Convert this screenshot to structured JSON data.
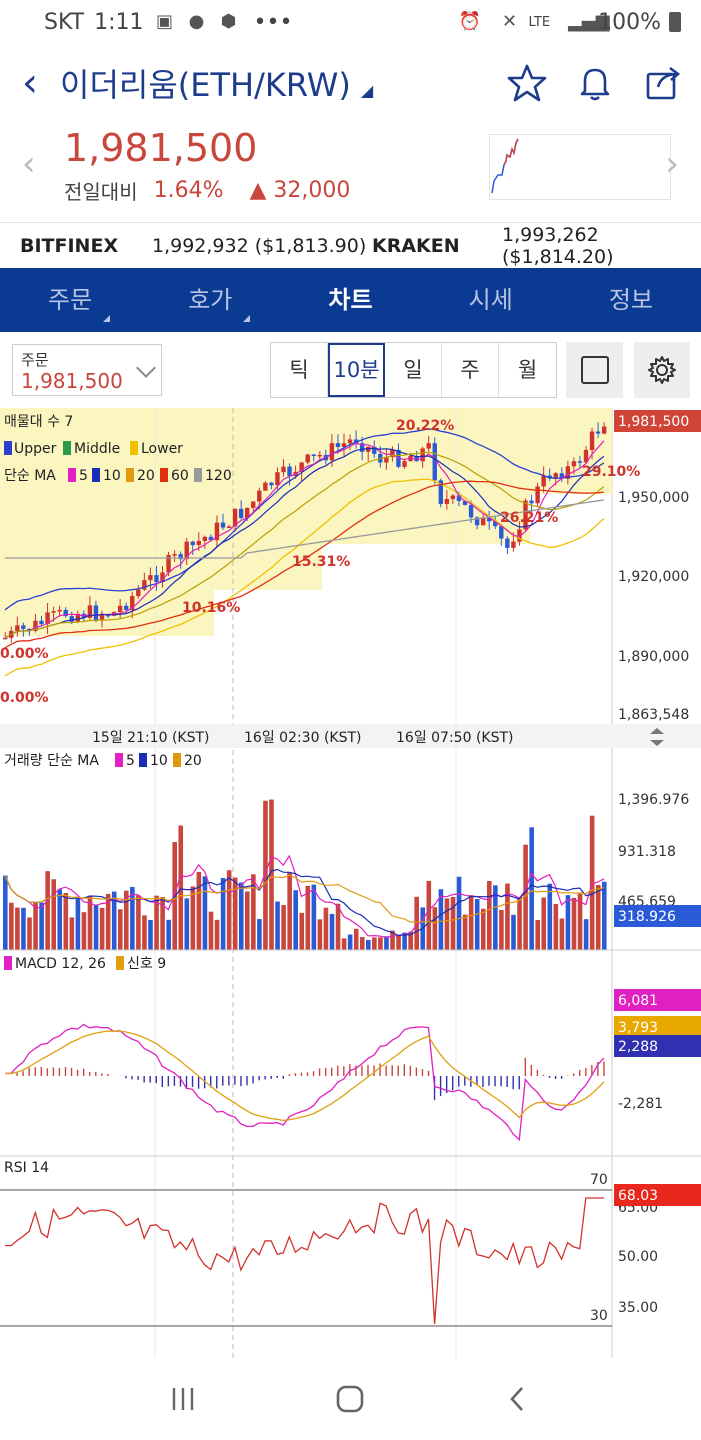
{
  "status": {
    "carrier": "SKT",
    "time": "1:11",
    "more": "•••",
    "network": "LTE",
    "battery": "100%"
  },
  "header": {
    "title": "이더리움(ETH/KRW)"
  },
  "price": {
    "current": "1,981,500",
    "label": "전일대비",
    "percent": "1.64%",
    "change": "32,000"
  },
  "exchanges": [
    {
      "name": "BITFINEX",
      "value": "1,992,932 ($1,813.90)"
    },
    {
      "name": "KRAKEN",
      "value": "1,993,262 ($1,814.20)"
    }
  ],
  "tabs": [
    {
      "label": "주문"
    },
    {
      "label": "호가"
    },
    {
      "label": "차트"
    },
    {
      "label": "시세"
    },
    {
      "label": "정보"
    }
  ],
  "order": {
    "label": "주문",
    "value": "1,981,500"
  },
  "periods": [
    "틱",
    "10분",
    "일",
    "주",
    "월"
  ],
  "chart_data": {
    "type": "candlestick",
    "price_axis": [
      "1,950,000",
      "1,920,000",
      "1,890,000",
      "1,863,548"
    ],
    "current_price": "1,981,500",
    "time_axis": [
      "15일 21:10 (KST)",
      "16일 02:30 (KST)",
      "16일 07:50 (KST)"
    ],
    "legend_vp": "매물대 수 7",
    "bollinger": [
      "Upper",
      "Middle",
      "Lower"
    ],
    "ma_title": "단순 MA",
    "ma_periods": [
      "5",
      "10",
      "20",
      "60",
      "120"
    ],
    "annotations": [
      "20.22%",
      "29.10%",
      "26.21%",
      "15.31%",
      "10.16%",
      "0.00%",
      "0.00%"
    ],
    "volume": {
      "title": "거래량 단순 MA",
      "periods": [
        "5",
        "10",
        "20"
      ],
      "ticks": [
        "1,396.976",
        "931.318",
        "465.659"
      ],
      "current": "318.926"
    },
    "macd": {
      "title": "MACD 12, 26",
      "signal": "신호 9",
      "ticks": [
        "-2,281"
      ],
      "macd": "6,081",
      "signal_val": "3,793",
      "osc": "2,288"
    },
    "rsi": {
      "title": "RSI 14",
      "levels": [
        "70",
        "30"
      ],
      "ticks": [
        "65.00",
        "50.00",
        "35.00"
      ],
      "current": "68.03"
    }
  },
  "colors": {
    "navy": "#0b3a93",
    "up": "#c8463c",
    "down": "#2a5bd7",
    "accent": "#1e3c8c"
  }
}
